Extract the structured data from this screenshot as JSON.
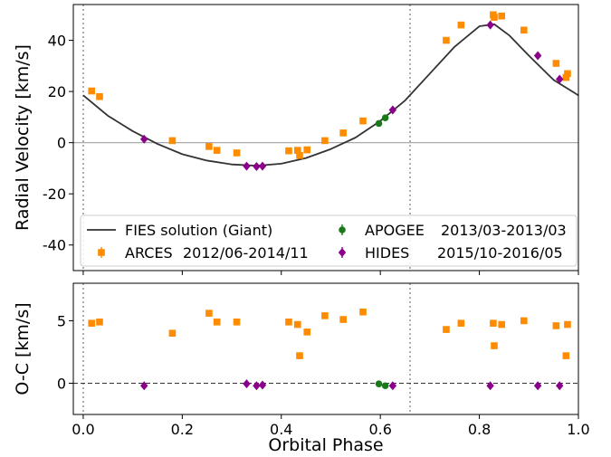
{
  "chart_data": [
    {
      "type": "scatter",
      "panel": "top",
      "title": "",
      "xlabel": "",
      "ylabel": "Radial Velocity [km/s]",
      "xlim": [
        -0.02,
        1.0
      ],
      "ylim": [
        -50,
        54
      ],
      "yticks": [
        -40,
        -20,
        0,
        20,
        40
      ],
      "xticks": [
        0.0,
        0.2,
        0.4,
        0.6,
        0.8,
        1.0
      ],
      "grid": false,
      "reference_lines": {
        "horizontal_y": 0,
        "vertical_x": [
          0.0,
          0.66
        ]
      },
      "legend_position": "lower-left",
      "model": {
        "name": "FIES solution (Giant)",
        "color": "#333333",
        "x": [
          0.0,
          0.05,
          0.1,
          0.15,
          0.2,
          0.25,
          0.3,
          0.35,
          0.4,
          0.45,
          0.5,
          0.55,
          0.6,
          0.65,
          0.7,
          0.75,
          0.8,
          0.83,
          0.86,
          0.9,
          0.95,
          1.0
        ],
        "y": [
          18.5,
          10.5,
          4.5,
          -0.5,
          -4.5,
          -7.0,
          -8.5,
          -9.0,
          -8.2,
          -6.0,
          -2.5,
          2.0,
          8.5,
          16.5,
          27.0,
          37.5,
          45.5,
          46.3,
          42.0,
          34.0,
          24.5,
          18.5
        ]
      },
      "series": [
        {
          "name": "ARCES",
          "dates": "2012/06-2014/11",
          "marker": "square",
          "color": "#ff8c00",
          "x": [
            0.017,
            0.033,
            0.18,
            0.254,
            0.27,
            0.31,
            0.415,
            0.433,
            0.437,
            0.452,
            0.488,
            0.525,
            0.565,
            0.733,
            0.763,
            0.828,
            0.83,
            0.845,
            0.89,
            0.955,
            0.975,
            0.978
          ],
          "y": [
            20.2,
            18.0,
            0.8,
            -1.5,
            -3.0,
            -4.0,
            -3.2,
            -3.0,
            -5.0,
            -2.8,
            0.8,
            3.8,
            8.5,
            40.0,
            46.0,
            50.0,
            49.0,
            49.5,
            44.0,
            31.0,
            25.5,
            27.0
          ]
        },
        {
          "name": "APOGEE",
          "dates": "2013/03-2013/03",
          "marker": "circle",
          "color": "#1a7a1a",
          "x": [
            0.597,
            0.61
          ],
          "y": [
            7.5,
            9.7
          ]
        },
        {
          "name": "HIDES",
          "dates": "2015/10-2016/05",
          "marker": "diamond",
          "color": "#8b008b",
          "x": [
            0.123,
            0.33,
            0.35,
            0.362,
            0.625,
            0.822,
            0.918,
            0.962
          ],
          "y": [
            1.4,
            -9.2,
            -9.3,
            -9.2,
            12.8,
            46.0,
            34.0,
            24.8
          ]
        }
      ]
    },
    {
      "type": "scatter",
      "panel": "bottom",
      "title": "",
      "xlabel": "Orbital Phase",
      "ylabel": "O-C [km/s]",
      "xlim": [
        -0.02,
        1.0
      ],
      "ylim": [
        -2.5,
        8.0
      ],
      "yticks": [
        0,
        5
      ],
      "xticks": [
        0.0,
        0.2,
        0.4,
        0.6,
        0.8,
        1.0
      ],
      "xtick_labels": [
        "0.0",
        "0.2",
        "0.4",
        "0.6",
        "0.8",
        "1.0"
      ],
      "grid": false,
      "reference_lines": {
        "horizontal_y": 0,
        "vertical_x": [
          0.0,
          0.66
        ]
      },
      "series": [
        {
          "name": "ARCES",
          "marker": "square",
          "color": "#ff8c00",
          "x": [
            0.017,
            0.033,
            0.18,
            0.254,
            0.27,
            0.31,
            0.415,
            0.433,
            0.437,
            0.452,
            0.488,
            0.525,
            0.565,
            0.733,
            0.763,
            0.828,
            0.83,
            0.845,
            0.89,
            0.955,
            0.975,
            0.978
          ],
          "y": [
            4.8,
            4.9,
            4.0,
            5.6,
            4.9,
            4.9,
            4.9,
            4.7,
            2.2,
            4.1,
            5.4,
            5.1,
            5.7,
            4.3,
            4.8,
            4.8,
            3.0,
            4.7,
            5.0,
            4.6,
            2.2,
            4.7
          ]
        },
        {
          "name": "APOGEE",
          "marker": "circle",
          "color": "#1a7a1a",
          "x": [
            0.597,
            0.61
          ],
          "y": [
            -0.05,
            -0.2
          ]
        },
        {
          "name": "HIDES",
          "marker": "diamond",
          "color": "#8b008b",
          "x": [
            0.123,
            0.33,
            0.35,
            0.362,
            0.625,
            0.822,
            0.918,
            0.962
          ],
          "y": [
            -0.2,
            -0.05,
            -0.2,
            -0.15,
            -0.2,
            -0.2,
            -0.2,
            -0.2
          ]
        }
      ]
    }
  ]
}
